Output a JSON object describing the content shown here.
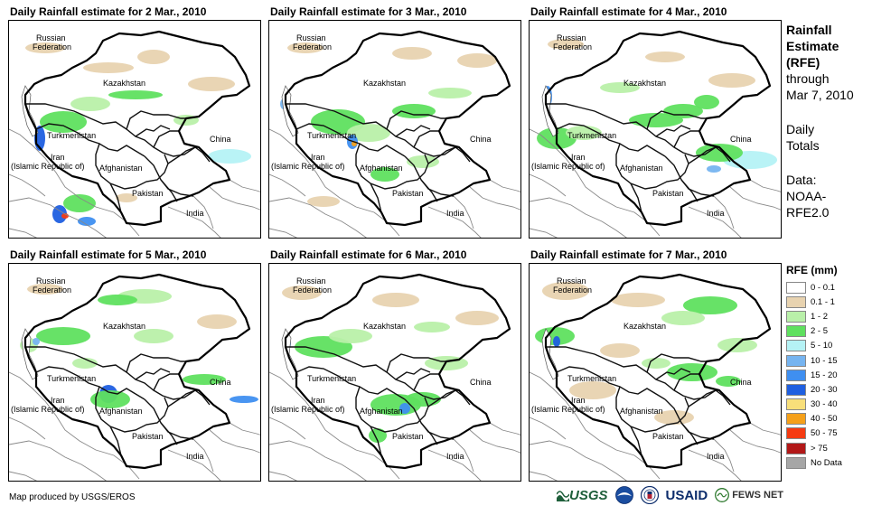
{
  "panels": [
    {
      "title": "Daily Rainfall estimate for 2 Mar., 2010"
    },
    {
      "title": "Daily Rainfall estimate for 3 Mar., 2010"
    },
    {
      "title": "Daily Rainfall estimate for 4 Mar., 2010"
    },
    {
      "title": "Daily Rainfall estimate for 5 Mar., 2010"
    },
    {
      "title": "Daily Rainfall estimate for 6 Mar., 2010"
    },
    {
      "title": "Daily Rainfall estimate for 7 Mar., 2010"
    }
  ],
  "map_labels": {
    "russia_1": "Russian",
    "russia_2": "Federation",
    "kazakhstan": "Kazakhstan",
    "turkmenistan": "Turkmenistan",
    "iran_1": "Iran",
    "iran_2": "(Islamic Republic of)",
    "afghanistan": "Afghanistan",
    "pakistan": "Pakistan",
    "china": "China",
    "india": "India"
  },
  "sidebar": {
    "heading": [
      "Rainfall",
      "Estimate",
      "(RFE)"
    ],
    "through": [
      "through",
      "Mar 7, 2010"
    ],
    "totals": [
      "Daily",
      "Totals"
    ],
    "data": [
      "Data:",
      "NOAA-",
      "RFE2.0"
    ]
  },
  "legend": {
    "title": "RFE (mm)",
    "items": [
      {
        "label": "0 - 0.1",
        "color": "#ffffff"
      },
      {
        "label": "0.1 - 1",
        "color": "#e8d3b0"
      },
      {
        "label": "1 - 2",
        "color": "#b9f0a9"
      },
      {
        "label": "2 - 5",
        "color": "#5fe05f"
      },
      {
        "label": "5 - 10",
        "color": "#b5f2f5"
      },
      {
        "label": "10 - 15",
        "color": "#76b4f0"
      },
      {
        "label": "15 - 20",
        "color": "#3f8ff0"
      },
      {
        "label": "20 - 30",
        "color": "#1f5fe0"
      },
      {
        "label": "30 - 40",
        "color": "#f8df7a"
      },
      {
        "label": "40 - 50",
        "color": "#f5a01a"
      },
      {
        "label": "50 - 75",
        "color": "#f53b12"
      },
      {
        "label": "> 75",
        "color": "#b21818"
      },
      {
        "label": "No Data",
        "color": "#a6a6a6"
      }
    ]
  },
  "footer": {
    "credit": "Map produced by USGS/EROS",
    "logo_usgs": "USGS",
    "logo_usaid": "USAID",
    "logo_fews": "FEWS NET"
  }
}
